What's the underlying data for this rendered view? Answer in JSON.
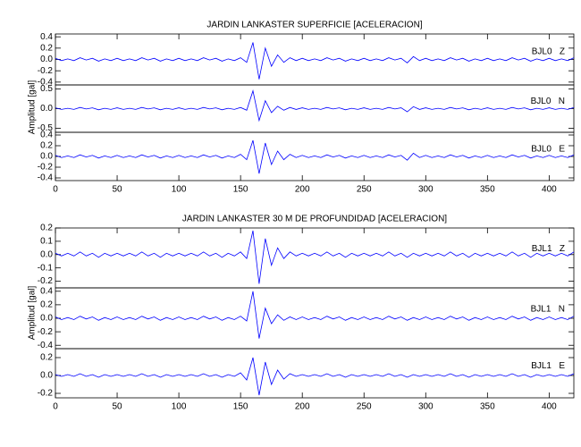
{
  "chart_data": [
    {
      "type": "line",
      "title": "JARDIN LANKASTER SUPERFICIE [ACELERACION]",
      "y_label": "Amplitud [gal]",
      "xlim": [
        0,
        420
      ],
      "xticks": [
        0,
        50,
        100,
        150,
        200,
        250,
        300,
        350,
        400
      ],
      "x": [
        0,
        5,
        10,
        15,
        20,
        25,
        30,
        35,
        40,
        45,
        50,
        55,
        60,
        65,
        70,
        75,
        80,
        85,
        90,
        95,
        100,
        105,
        110,
        115,
        120,
        125,
        130,
        135,
        140,
        145,
        150,
        155,
        160,
        165,
        170,
        175,
        180,
        185,
        190,
        195,
        200,
        205,
        210,
        215,
        220,
        225,
        230,
        235,
        240,
        245,
        250,
        255,
        260,
        265,
        270,
        275,
        280,
        285,
        290,
        295,
        300,
        305,
        310,
        315,
        320,
        325,
        330,
        335,
        340,
        345,
        350,
        355,
        360,
        365,
        370,
        375,
        380,
        385,
        390,
        395,
        400,
        405,
        410,
        415,
        420
      ],
      "panels": [
        {
          "label": "BJL0   Z",
          "color": "#0000ff",
          "ylim": [
            -0.45,
            0.45
          ],
          "yticks": [
            {
              "value": 0.4,
              "label": "0.4"
            },
            {
              "value": 0.2,
              "label": "0.2"
            },
            {
              "value": 0,
              "label": "0.0"
            },
            {
              "value": -0.2,
              "label": "-0.2"
            },
            {
              "value": -0.4,
              "label": "-0.4"
            }
          ],
          "values": [
            0.02,
            -0.02,
            0.01,
            -0.02,
            0.03,
            -0.01,
            0.02,
            -0.03,
            0.01,
            -0.02,
            0.02,
            -0.02,
            0.01,
            -0.02,
            0.03,
            -0.01,
            0.02,
            -0.03,
            0.01,
            -0.02,
            0.02,
            -0.02,
            0.01,
            -0.02,
            0.03,
            -0.01,
            0.02,
            -0.03,
            0.01,
            -0.02,
            0.03,
            -0.05,
            0.3,
            -0.35,
            0.2,
            -0.12,
            0.08,
            -0.05,
            0.03,
            -0.02,
            0.02,
            -0.02,
            0.01,
            -0.02,
            0.03,
            -0.01,
            0.02,
            -0.03,
            0.01,
            -0.02,
            0.02,
            -0.02,
            0.01,
            -0.02,
            0.03,
            -0.01,
            0.02,
            -0.06,
            0.05,
            -0.02,
            0.02,
            -0.02,
            0.01,
            -0.02,
            0.03,
            -0.01,
            0.02,
            -0.03,
            0.01,
            -0.02,
            0.02,
            -0.02,
            0.01,
            -0.02,
            0.03,
            -0.01,
            0.02,
            -0.03,
            0.01,
            -0.02,
            0.02,
            -0.02,
            0.01,
            -0.02,
            0.03
          ]
        },
        {
          "label": "BJL0   N",
          "color": "#0000ff",
          "ylim": [
            -0.6,
            0.6
          ],
          "yticks": [
            {
              "value": 0.5,
              "label": "0.5"
            },
            {
              "value": 0,
              "label": "0.0"
            },
            {
              "value": -0.5,
              "label": "-0.5"
            }
          ],
          "values": [
            0.02,
            -0.02,
            0.01,
            -0.02,
            0.03,
            -0.01,
            0.02,
            -0.03,
            0.01,
            -0.02,
            0.02,
            -0.02,
            0.01,
            -0.02,
            0.03,
            -0.01,
            0.02,
            -0.03,
            0.01,
            -0.02,
            0.02,
            -0.02,
            0.01,
            -0.02,
            0.03,
            -0.01,
            0.02,
            -0.03,
            0.01,
            -0.02,
            0.03,
            -0.04,
            0.45,
            -0.3,
            0.2,
            -0.1,
            0.06,
            -0.04,
            0.03,
            -0.02,
            0.02,
            -0.02,
            0.01,
            -0.02,
            0.03,
            -0.01,
            0.02,
            -0.03,
            0.01,
            -0.02,
            0.02,
            -0.02,
            0.01,
            -0.02,
            0.03,
            -0.01,
            0.02,
            -0.08,
            0.05,
            -0.02,
            0.02,
            -0.02,
            0.01,
            -0.02,
            0.03,
            -0.01,
            0.02,
            -0.03,
            0.01,
            -0.02,
            0.02,
            -0.02,
            0.01,
            -0.02,
            0.03,
            -0.01,
            0.02,
            -0.03,
            0.01,
            -0.02,
            0.02,
            -0.02,
            0.01,
            -0.02,
            0.03
          ]
        },
        {
          "label": "BJL0   E",
          "color": "#0000ff",
          "ylim": [
            -0.45,
            0.45
          ],
          "yticks": [
            {
              "value": 0.4,
              "label": "0.4"
            },
            {
              "value": 0.2,
              "label": "0.2"
            },
            {
              "value": 0,
              "label": "0.0"
            },
            {
              "value": -0.2,
              "label": "-0.2"
            },
            {
              "value": -0.4,
              "label": "-0.4"
            }
          ],
          "values": [
            0.02,
            -0.02,
            0.01,
            -0.02,
            0.03,
            -0.01,
            0.02,
            -0.03,
            0.01,
            -0.02,
            0.02,
            -0.02,
            0.01,
            -0.02,
            0.03,
            -0.01,
            0.02,
            -0.03,
            0.01,
            -0.02,
            0.02,
            -0.02,
            0.01,
            -0.02,
            0.03,
            -0.01,
            0.02,
            -0.03,
            0.01,
            -0.02,
            0.04,
            -0.06,
            0.3,
            -0.32,
            0.25,
            -0.15,
            0.1,
            -0.06,
            0.04,
            -0.02,
            0.02,
            -0.02,
            0.01,
            -0.02,
            0.03,
            -0.01,
            0.02,
            -0.03,
            0.01,
            -0.02,
            0.02,
            -0.02,
            0.01,
            -0.02,
            0.03,
            -0.01,
            0.02,
            -0.07,
            0.06,
            -0.02,
            0.02,
            -0.02,
            0.01,
            -0.02,
            0.03,
            -0.01,
            0.02,
            -0.03,
            0.01,
            -0.02,
            0.02,
            -0.02,
            0.01,
            -0.02,
            0.03,
            -0.01,
            0.02,
            -0.03,
            0.01,
            -0.02,
            0.02,
            -0.02,
            0.01,
            -0.02,
            0.03
          ]
        }
      ]
    },
    {
      "type": "line",
      "title": "JARDIN LANKASTER 30 M DE PROFUNDIDAD [ACELERACION]",
      "y_label": "Amplitud [gal]",
      "xlim": [
        0,
        420
      ],
      "xticks": [
        0,
        50,
        100,
        150,
        200,
        250,
        300,
        350,
        400
      ],
      "x": [
        0,
        5,
        10,
        15,
        20,
        25,
        30,
        35,
        40,
        45,
        50,
        55,
        60,
        65,
        70,
        75,
        80,
        85,
        90,
        95,
        100,
        105,
        110,
        115,
        120,
        125,
        130,
        135,
        140,
        145,
        150,
        155,
        160,
        165,
        170,
        175,
        180,
        185,
        190,
        195,
        200,
        205,
        210,
        215,
        220,
        225,
        230,
        235,
        240,
        245,
        250,
        255,
        260,
        265,
        270,
        275,
        280,
        285,
        290,
        295,
        300,
        305,
        310,
        315,
        320,
        325,
        330,
        335,
        340,
        345,
        350,
        355,
        360,
        365,
        370,
        375,
        380,
        385,
        390,
        395,
        400,
        405,
        410,
        415,
        420
      ],
      "panels": [
        {
          "label": "BJL1   Z",
          "color": "#0000ff",
          "ylim": [
            -0.25,
            0.2
          ],
          "yticks": [
            {
              "value": 0.2,
              "label": "0.2"
            },
            {
              "value": 0.1,
              "label": "0.1"
            },
            {
              "value": 0,
              "label": "0.0"
            },
            {
              "value": -0.1,
              "label": "-0.1"
            },
            {
              "value": -0.2,
              "label": "-0.2"
            }
          ],
          "values": [
            0.01,
            -0.01,
            0.01,
            -0.01,
            0.02,
            -0.01,
            0.01,
            -0.02,
            0.01,
            -0.01,
            0.01,
            -0.01,
            0.01,
            -0.01,
            0.02,
            -0.01,
            0.01,
            -0.02,
            0.01,
            -0.01,
            0.01,
            -0.01,
            0.01,
            -0.01,
            0.02,
            -0.01,
            0.01,
            -0.02,
            0.01,
            -0.01,
            0.02,
            -0.03,
            0.18,
            -0.22,
            0.12,
            -0.08,
            0.05,
            -0.03,
            0.02,
            -0.01,
            0.01,
            -0.01,
            0.01,
            -0.01,
            0.02,
            -0.01,
            0.01,
            -0.02,
            0.01,
            -0.01,
            0.01,
            -0.01,
            0.01,
            -0.01,
            0.02,
            -0.01,
            0.01,
            -0.02,
            0.01,
            -0.01,
            0.01,
            -0.01,
            0.01,
            -0.01,
            0.02,
            -0.01,
            0.01,
            -0.02,
            0.01,
            -0.01,
            0.01,
            -0.01,
            0.01,
            -0.01,
            0.02,
            -0.01,
            0.01,
            -0.02,
            0.01,
            -0.01,
            0.01,
            -0.01,
            0.01,
            -0.01,
            0.02
          ]
        },
        {
          "label": "BJL1   N",
          "color": "#0000ff",
          "ylim": [
            -0.45,
            0.45
          ],
          "yticks": [
            {
              "value": 0.4,
              "label": "0.4"
            },
            {
              "value": 0.2,
              "label": "0.2"
            },
            {
              "value": 0,
              "label": "0.0"
            },
            {
              "value": -0.2,
              "label": "-0.2"
            },
            {
              "value": -0.4,
              "label": "-0.4"
            }
          ],
          "values": [
            0.02,
            -0.02,
            0.01,
            -0.02,
            0.03,
            -0.01,
            0.02,
            -0.03,
            0.01,
            -0.02,
            0.02,
            -0.02,
            0.01,
            -0.02,
            0.03,
            -0.01,
            0.02,
            -0.03,
            0.01,
            -0.02,
            0.02,
            -0.02,
            0.01,
            -0.02,
            0.03,
            -0.01,
            0.02,
            -0.03,
            0.01,
            -0.02,
            0.03,
            -0.04,
            0.4,
            -0.3,
            0.15,
            -0.08,
            0.05,
            -0.03,
            0.02,
            -0.02,
            0.02,
            -0.02,
            0.01,
            -0.02,
            0.03,
            -0.01,
            0.02,
            -0.03,
            0.01,
            -0.02,
            0.02,
            -0.02,
            0.01,
            -0.02,
            0.03,
            -0.01,
            0.02,
            -0.03,
            0.01,
            -0.02,
            0.02,
            -0.02,
            0.01,
            -0.02,
            0.03,
            -0.01,
            0.02,
            -0.03,
            0.01,
            -0.02,
            0.02,
            -0.02,
            0.01,
            -0.02,
            0.03,
            -0.01,
            0.02,
            -0.03,
            0.01,
            -0.02,
            0.02,
            -0.02,
            0.01,
            -0.02,
            0.03
          ]
        },
        {
          "label": "BJL1   E",
          "color": "#0000ff",
          "ylim": [
            -0.25,
            0.3
          ],
          "yticks": [
            {
              "value": 0.2,
              "label": "0.2"
            },
            {
              "value": 0,
              "label": "0.0"
            },
            {
              "value": -0.2,
              "label": "-0.2"
            }
          ],
          "values": [
            0.01,
            -0.01,
            0.01,
            -0.01,
            0.02,
            -0.01,
            0.01,
            -0.02,
            0.01,
            -0.01,
            0.01,
            -0.01,
            0.01,
            -0.01,
            0.02,
            -0.01,
            0.01,
            -0.02,
            0.01,
            -0.01,
            0.01,
            -0.01,
            0.01,
            -0.01,
            0.02,
            -0.01,
            0.01,
            -0.02,
            0.01,
            -0.01,
            0.03,
            -0.05,
            0.2,
            -0.22,
            0.15,
            -0.1,
            0.06,
            -0.04,
            0.02,
            -0.01,
            0.01,
            -0.01,
            0.01,
            -0.01,
            0.02,
            -0.01,
            0.01,
            -0.02,
            0.01,
            -0.01,
            0.01,
            -0.01,
            0.01,
            -0.01,
            0.02,
            -0.01,
            0.01,
            -0.02,
            0.01,
            -0.01,
            0.01,
            -0.01,
            0.01,
            -0.01,
            0.02,
            -0.01,
            0.01,
            -0.02,
            0.01,
            -0.01,
            0.01,
            -0.01,
            0.01,
            -0.01,
            0.02,
            -0.01,
            0.01,
            -0.02,
            0.01,
            -0.01,
            0.01,
            -0.01,
            0.01,
            -0.01,
            0.02
          ]
        }
      ]
    }
  ]
}
